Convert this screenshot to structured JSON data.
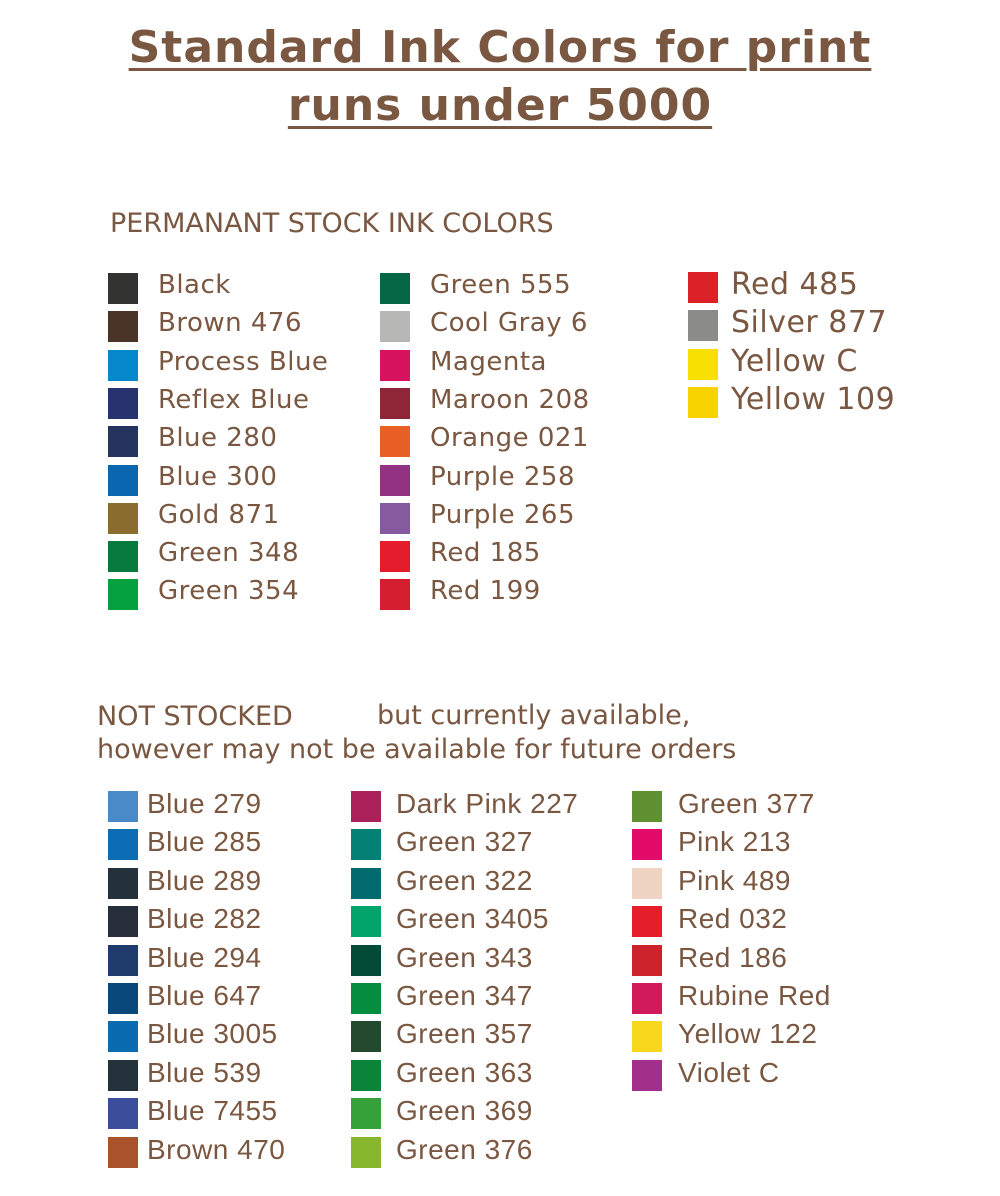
{
  "title": {
    "line1": "Standard Ink Colors for print ",
    "line2": "runs under 5000"
  },
  "permanent": {
    "heading": "PERMANANT STOCK INK COLORS",
    "columns": [
      [
        {
          "name": "Black",
          "color": "#333331"
        },
        {
          "name": "Brown 476",
          "color": "#4a3427"
        },
        {
          "name": "Process Blue",
          "color": "#0589cc"
        },
        {
          "name": "Reflex Blue",
          "color": "#27336e"
        },
        {
          "name": "Blue 280",
          "color": "#25335f"
        },
        {
          "name": "Blue 300",
          "color": "#0a66ae"
        },
        {
          "name": "Gold 871",
          "color": "#8a6d2e"
        },
        {
          "name": "Green 348",
          "color": "#077a3e"
        },
        {
          "name": "Green 354",
          "color": "#03a23f"
        }
      ],
      [
        {
          "name": "Green 555",
          "color": "#066747"
        },
        {
          "name": "Cool Gray 6",
          "color": "#b7b7b5"
        },
        {
          "name": "Magenta",
          "color": "#d7125e"
        },
        {
          "name": "Maroon 208",
          "color": "#8e2638"
        },
        {
          "name": "Orange 021",
          "color": "#e86025"
        },
        {
          "name": "Purple 258",
          "color": "#933283"
        },
        {
          "name": "Purple 265",
          "color": "#855a9e"
        },
        {
          "name": "Red 185",
          "color": "#e51c2c"
        },
        {
          "name": "Red 199",
          "color": "#d51f30"
        }
      ],
      [
        {
          "name": "Red 485",
          "color": "#dc2128"
        },
        {
          "name": "Silver 877",
          "color": "#8b8c8a"
        },
        {
          "name": "Yellow C",
          "color": "#f8e002"
        },
        {
          "name": "Yellow 109",
          "color": "#f8d300"
        }
      ]
    ]
  },
  "not_stocked": {
    "heading_a": "NOT STOCKED",
    "heading_b": "but currently available,",
    "heading_c": "however may not be available for future orders",
    "columns": [
      [
        {
          "name": "Blue 279",
          "color": "#4b8ac8"
        },
        {
          "name": "Blue 285",
          "color": "#0c6db5"
        },
        {
          "name": "Blue 289",
          "color": "#24303b"
        },
        {
          "name": "Blue 282",
          "color": "#262e3c"
        },
        {
          "name": "Blue 294",
          "color": "#1f3b6c"
        },
        {
          "name": "Blue 647",
          "color": "#08487a"
        },
        {
          "name": "Blue 3005",
          "color": "#0a6bb0"
        },
        {
          "name": "Blue 539",
          "color": "#23323b"
        },
        {
          "name": "Blue 7455",
          "color": "#3c4d9b"
        },
        {
          "name": "Brown 470",
          "color": "#a9532a"
        }
      ],
      [
        {
          "name": "Dark Pink 227",
          "color": "#ab215a"
        },
        {
          "name": "Green 327",
          "color": "#038175"
        },
        {
          "name": "Green 322",
          "color": "#026b6d"
        },
        {
          "name": "Green 3405",
          "color": "#03a46b"
        },
        {
          "name": "Green 343",
          "color": "#034b37"
        },
        {
          "name": "Green 347",
          "color": "#048d3f"
        },
        {
          "name": "Green 357",
          "color": "#234a2e"
        },
        {
          "name": "Green 363",
          "color": "#0b8339"
        },
        {
          "name": "Green 369",
          "color": "#35a138"
        },
        {
          "name": "Green 376",
          "color": "#86b72d"
        }
      ],
      [
        {
          "name": "Green 377",
          "color": "#5f9031"
        },
        {
          "name": "Pink 213",
          "color": "#e20b6a"
        },
        {
          "name": "Pink 489",
          "color": "#efd3c3"
        },
        {
          "name": "Red 032",
          "color": "#e51e2c"
        },
        {
          "name": "Red 186",
          "color": "#cc232c"
        },
        {
          "name": "Rubine Red",
          "color": "#d01a59"
        },
        {
          "name": "Yellow 122",
          "color": "#f7d81d"
        },
        {
          "name": "Violet C",
          "color": "#a22f8a"
        }
      ]
    ]
  }
}
